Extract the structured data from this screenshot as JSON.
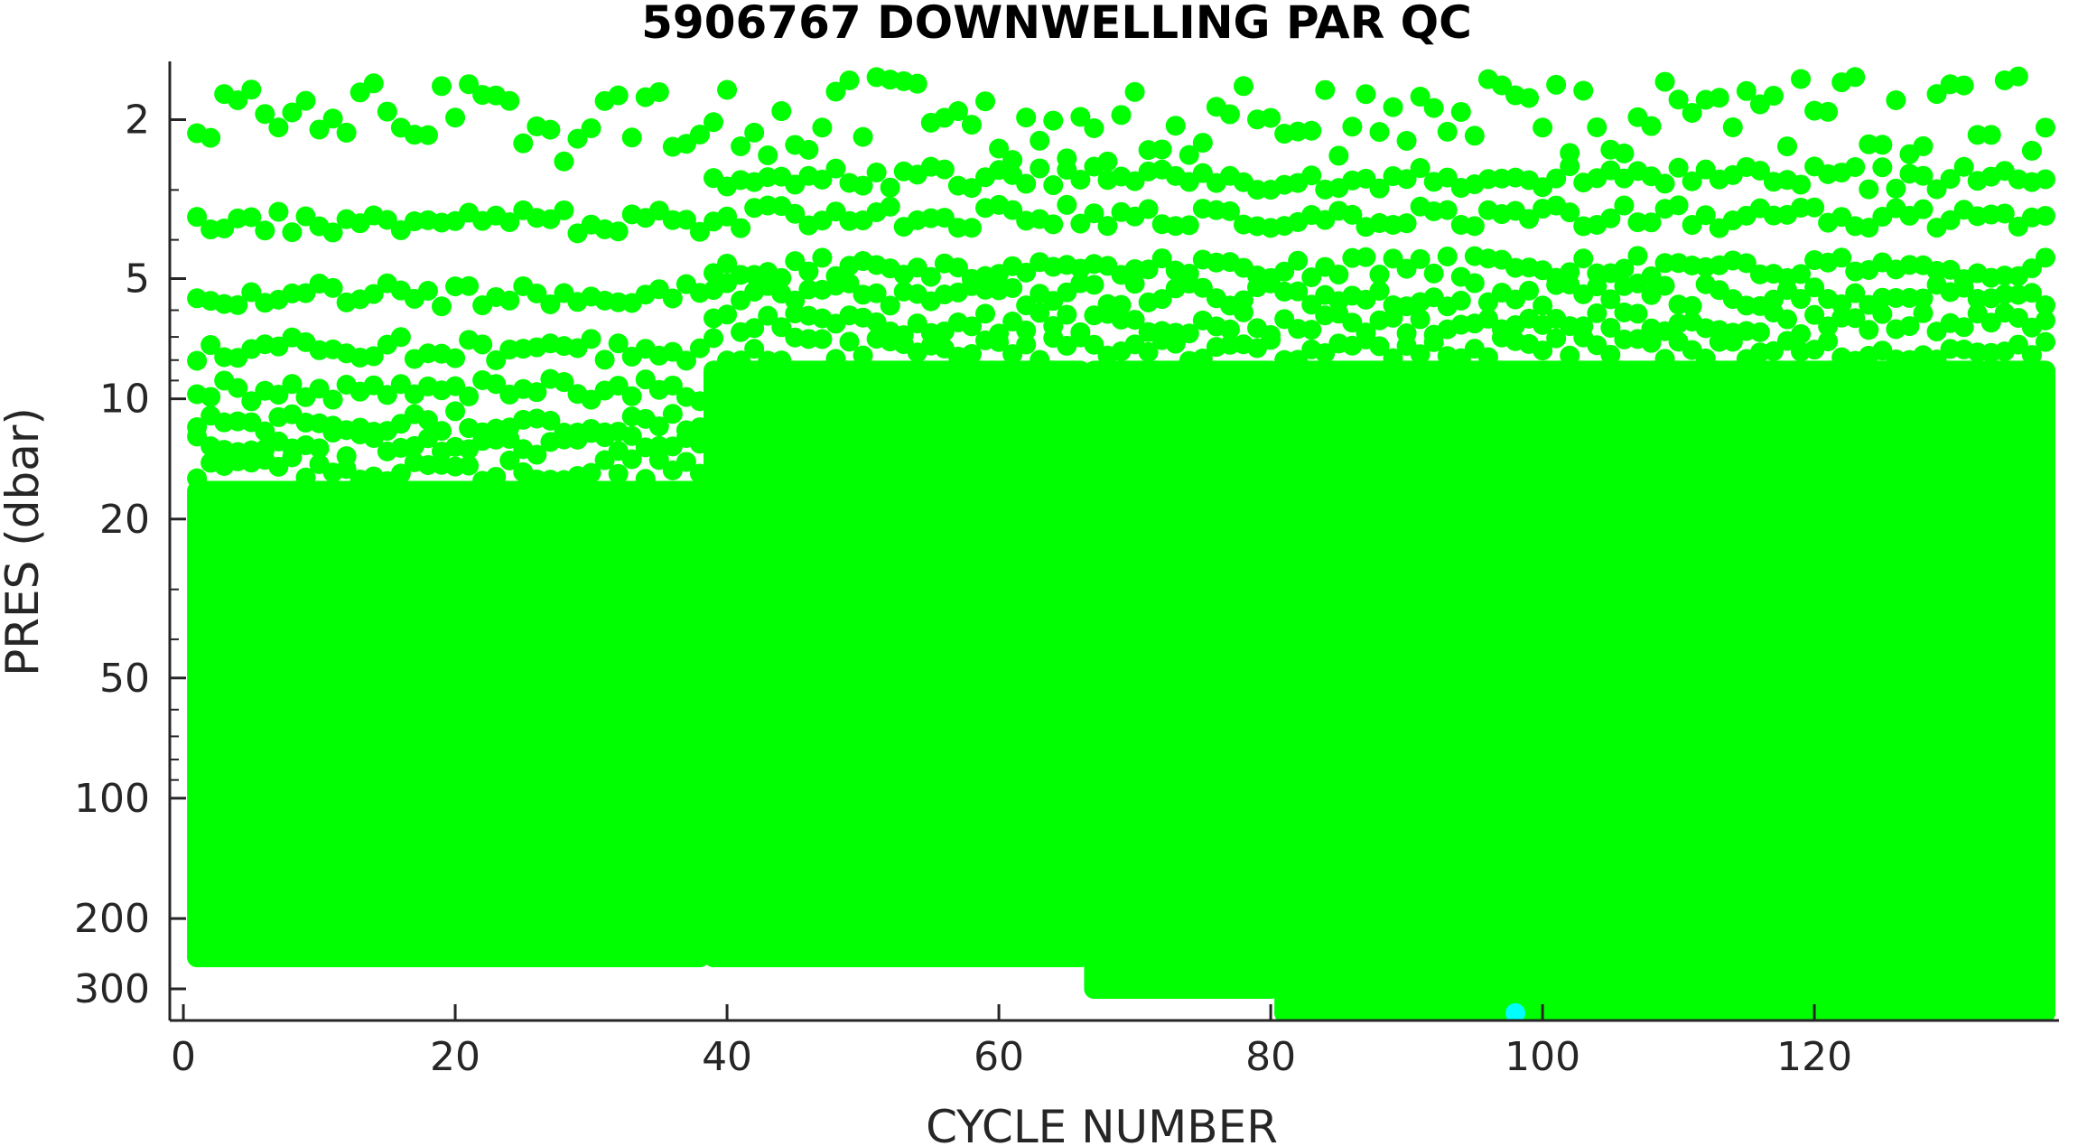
{
  "chart_data": {
    "type": "scatter",
    "title": "5906767  DOWNWELLING PAR QC",
    "xlabel": "CYCLE NUMBER",
    "ylabel": "PRES (dbar)",
    "xlim": [
      -1,
      138
    ],
    "ylim": [
      1.43,
      360
    ],
    "y_scale": "log",
    "y_reversed": true,
    "grid": false,
    "x_ticks": [
      0,
      20,
      40,
      60,
      80,
      100,
      120
    ],
    "x_tick_labels": [
      "0",
      "20",
      "40",
      "60",
      "80",
      "100",
      "120"
    ],
    "y_ticks": [
      2,
      5,
      10,
      20,
      50,
      100,
      200,
      300
    ],
    "y_tick_labels": [
      "2",
      "5",
      "10",
      "20",
      "50",
      "100",
      "200",
      "300"
    ],
    "x_range": [
      1,
      137
    ],
    "series": [
      {
        "color": "#00ff00",
        "segments": [
          {
            "x_range": [
              1,
              38
            ],
            "y_dense_range": [
              17,
              250
            ],
            "y_levels": [
              2,
              3.6,
              5.5,
              7.5,
              9.5,
              11.5,
              13,
              15
            ]
          },
          {
            "x_range": [
              39,
              66
            ],
            "y_dense_range": [
              8.5,
              250
            ],
            "y_levels": [
              2,
              2.8,
              3.5,
              4.7,
              5.5,
              6.5,
              7.5
            ]
          },
          {
            "x_range": [
              67,
              80
            ],
            "y_dense_range": [
              8.5,
              300
            ],
            "y_levels": [
              2,
              2.8,
              3.5,
              4.7,
              5.5,
              6.5,
              7.5
            ]
          },
          {
            "x_range": [
              81,
              137
            ],
            "y_dense_range": [
              8.5,
              345
            ],
            "y_levels": [
              2,
              2.8,
              3.5,
              4.7,
              5.5,
              6.5,
              7.5
            ]
          }
        ]
      },
      {
        "color": "#00ffff",
        "points": [
          {
            "x": 98,
            "y": 345
          }
        ]
      }
    ]
  }
}
